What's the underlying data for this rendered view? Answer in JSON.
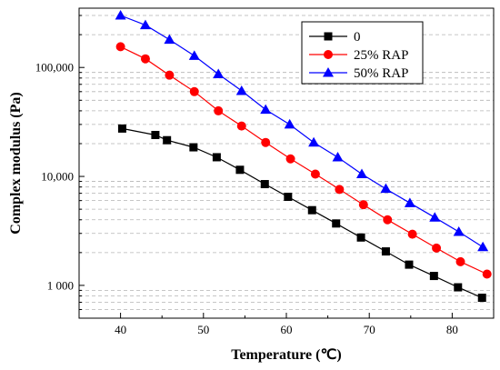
{
  "chart_data": {
    "type": "line",
    "title": "",
    "xlabel": "Temperature (℃)",
    "ylabel": "Complex modulus (Pa)",
    "xscale": "linear",
    "yscale": "log",
    "xlim": [
      35,
      85
    ],
    "ylim": [
      500,
      350000
    ],
    "xticks": [
      40,
      50,
      60,
      70,
      80
    ],
    "xtick_labels": [
      "40",
      "50",
      "60",
      "70",
      "80"
    ],
    "yticks": [
      1000,
      10000,
      100000
    ],
    "ytick_labels": [
      "1 000",
      "10,000",
      "100,000"
    ],
    "grid": "y-minor-dashed",
    "legend_position": "top-right",
    "series": [
      {
        "name": "0",
        "color": "#000000",
        "marker": "square",
        "x": [
          40.2,
          44.2,
          45.6,
          48.8,
          51.6,
          54.4,
          57.4,
          60.2,
          63.1,
          66,
          69,
          72,
          74.8,
          77.8,
          80.7,
          83.6
        ],
        "y": [
          27500,
          24000,
          21500,
          18500,
          15000,
          11500,
          8500,
          6500,
          4900,
          3700,
          2750,
          2050,
          1550,
          1220,
          960,
          770
        ]
      },
      {
        "name": "25% RAP",
        "color": "#ff0000",
        "marker": "circle",
        "x": [
          40,
          43,
          45.9,
          48.9,
          51.8,
          54.6,
          57.5,
          60.5,
          63.5,
          66.4,
          69.3,
          72.2,
          75.2,
          78.1,
          81,
          84.2
        ],
        "y": [
          155000,
          120000,
          85000,
          60000,
          40000,
          29000,
          20500,
          14500,
          10500,
          7600,
          5500,
          4000,
          2950,
          2200,
          1650,
          1270
        ]
      },
      {
        "name": "50% RAP",
        "color": "#0000ff",
        "marker": "triangle",
        "x": [
          40,
          43,
          45.9,
          48.9,
          51.8,
          54.6,
          57.5,
          60.4,
          63.3,
          66.2,
          69.1,
          72,
          74.9,
          77.9,
          80.8,
          83.7
        ],
        "y": [
          300000,
          245000,
          180000,
          128000,
          87000,
          61000,
          41000,
          30000,
          20500,
          15000,
          10500,
          7700,
          5700,
          4200,
          3100,
          2250
        ]
      }
    ]
  }
}
